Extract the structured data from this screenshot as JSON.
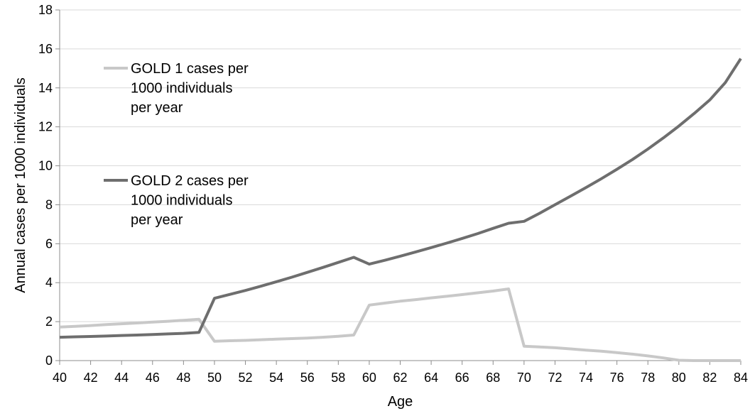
{
  "chart_data": {
    "type": "line",
    "xlabel": "Age",
    "ylabel": "Annual cases per 1000 individuals",
    "xlim": [
      40,
      84
    ],
    "ylim": [
      0,
      18
    ],
    "x_ticks": [
      40,
      42,
      44,
      46,
      48,
      50,
      52,
      54,
      56,
      58,
      60,
      62,
      64,
      66,
      68,
      70,
      72,
      74,
      76,
      78,
      80,
      82,
      84
    ],
    "y_ticks": [
      0,
      2,
      4,
      6,
      8,
      10,
      12,
      14,
      16,
      18
    ],
    "grid": "horizontal",
    "legend_position": "upper-left",
    "x": [
      40,
      41,
      42,
      43,
      44,
      45,
      46,
      47,
      48,
      49,
      50,
      51,
      52,
      53,
      54,
      55,
      56,
      57,
      58,
      59,
      60,
      61,
      62,
      63,
      64,
      65,
      66,
      67,
      68,
      69,
      70,
      71,
      72,
      73,
      74,
      75,
      76,
      77,
      78,
      79,
      80,
      81,
      82,
      83,
      84
    ],
    "series": [
      {
        "name": "GOLD 1 cases per 1000 individuals per year",
        "legend_lines": [
          "GOLD 1 cases per",
          "1000 individuals",
          "per year"
        ],
        "color": "#c8c8c8",
        "values": [
          1.72,
          1.76,
          1.8,
          1.85,
          1.89,
          1.93,
          1.98,
          2.02,
          2.07,
          2.12,
          0.99,
          1.02,
          1.04,
          1.07,
          1.1,
          1.13,
          1.16,
          1.2,
          1.25,
          1.31,
          2.85,
          2.95,
          3.05,
          3.13,
          3.22,
          3.3,
          3.39,
          3.48,
          3.57,
          3.68,
          0.74,
          0.7,
          0.66,
          0.6,
          0.54,
          0.48,
          0.41,
          0.33,
          0.24,
          0.14,
          0.02,
          0.0,
          0.0,
          0.0,
          0.0
        ]
      },
      {
        "name": "GOLD 2 cases per 1000 individuals per year",
        "legend_lines": [
          "GOLD 2 cases per",
          "1000 individuals",
          "per year"
        ],
        "color": "#6e6e6e",
        "values": [
          1.2,
          1.22,
          1.24,
          1.26,
          1.29,
          1.31,
          1.34,
          1.37,
          1.4,
          1.45,
          3.2,
          3.4,
          3.6,
          3.82,
          4.05,
          4.28,
          4.53,
          4.78,
          5.04,
          5.3,
          4.95,
          5.15,
          5.36,
          5.58,
          5.8,
          6.03,
          6.27,
          6.52,
          6.79,
          7.05,
          7.15,
          7.56,
          8.0,
          8.44,
          8.88,
          9.34,
          9.82,
          10.32,
          10.86,
          11.43,
          12.04,
          12.69,
          13.38,
          14.27,
          15.5
        ]
      }
    ]
  }
}
